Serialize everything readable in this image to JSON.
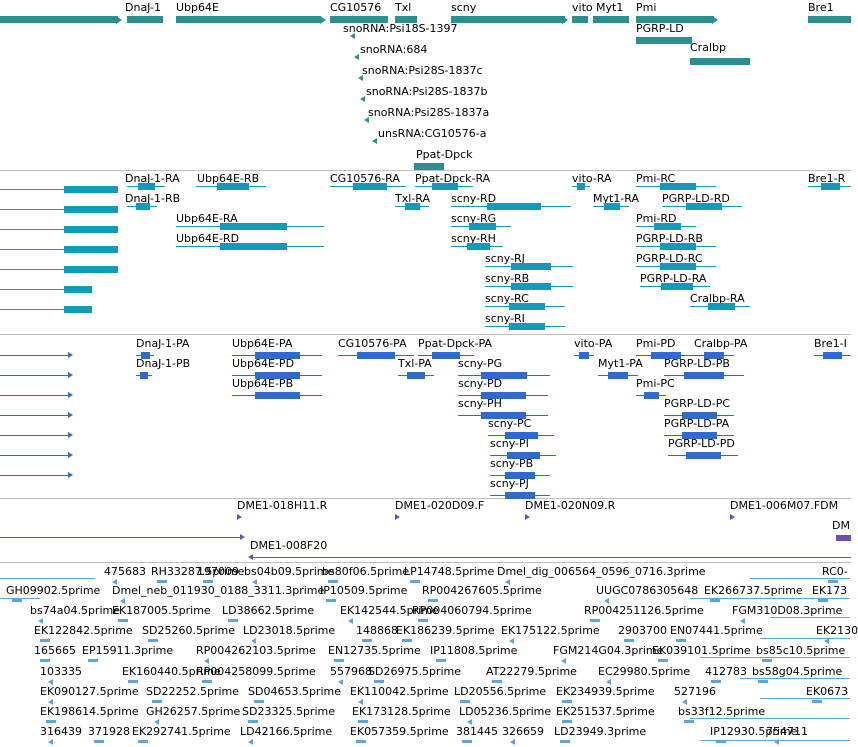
{
  "colors": {
    "gene": "#2a8f91",
    "mrna": "#119bb8",
    "cds": "#2f6bcc",
    "clone": "#6b4fb4",
    "est": "#5aa6dd",
    "separator": "#bfbfbf"
  },
  "tracks": {
    "genes": {
      "features": [
        {
          "label": "DnaJ-1"
        },
        {
          "label": "Ubp64E"
        },
        {
          "label": "CG10576"
        },
        {
          "label": "Txl"
        },
        {
          "label": "scny"
        },
        {
          "label": "vito"
        },
        {
          "label": "Myt1"
        },
        {
          "label": "Pmi"
        },
        {
          "label": "Bre1"
        },
        {
          "label": "PGRP-LD"
        },
        {
          "label": "Cralbp"
        },
        {
          "label": "snoRNA:Psi18S-1397"
        },
        {
          "label": "snoRNA:684"
        },
        {
          "label": "snoRNA:Psi28S-1837c"
        },
        {
          "label": "snoRNA:Psi28S-1837b"
        },
        {
          "label": "snoRNA:Psi28S-1837a"
        },
        {
          "label": "unsRNA:CG10576-a"
        },
        {
          "label": "Ppat-Dpck"
        }
      ]
    },
    "transcripts": {
      "features": [
        {
          "label": "DnaJ-1-RA"
        },
        {
          "label": "DnaJ-1-RB"
        },
        {
          "label": "Ubp64E-RB"
        },
        {
          "label": "Ubp64E-RA"
        },
        {
          "label": "Ubp64E-RD"
        },
        {
          "label": "CG10576-RA"
        },
        {
          "label": "Ppat-Dpck-RA"
        },
        {
          "label": "Txl-RA"
        },
        {
          "label": "scny-RD"
        },
        {
          "label": "scny-RG"
        },
        {
          "label": "scny-RH"
        },
        {
          "label": "scny-RJ"
        },
        {
          "label": "scny-RB"
        },
        {
          "label": "scny-RC"
        },
        {
          "label": "scny-RI"
        },
        {
          "label": "vito-RA"
        },
        {
          "label": "Myt1-RA"
        },
        {
          "label": "Pmi-RC"
        },
        {
          "label": "PGRP-LD-RD"
        },
        {
          "label": "Pmi-RD"
        },
        {
          "label": "PGRP-LD-RB"
        },
        {
          "label": "PGRP-LD-RC"
        },
        {
          "label": "PGRP-LD-RA"
        },
        {
          "label": "Cralbp-RA"
        },
        {
          "label": "Bre1-R"
        }
      ]
    },
    "cds": {
      "features": [
        {
          "label": "DnaJ-1-PA"
        },
        {
          "label": "DnaJ-1-PB"
        },
        {
          "label": "Ubp64E-PA"
        },
        {
          "label": "Ubp64E-PD"
        },
        {
          "label": "Ubp64E-PB"
        },
        {
          "label": "CG10576-PA"
        },
        {
          "label": "Ppat-Dpck-PA"
        },
        {
          "label": "Txl-PA"
        },
        {
          "label": "scny-PG"
        },
        {
          "label": "scny-PD"
        },
        {
          "label": "scny-PH"
        },
        {
          "label": "scny-PC"
        },
        {
          "label": "scny-PI"
        },
        {
          "label": "scny-PB"
        },
        {
          "label": "scny-PJ"
        },
        {
          "label": "vito-PA"
        },
        {
          "label": "Myt1-PA"
        },
        {
          "label": "Pmi-PD"
        },
        {
          "label": "Cralbp-PA"
        },
        {
          "label": "Pmi-PC"
        },
        {
          "label": "PGRP-LD-PB"
        },
        {
          "label": "PGRP-LD-PC"
        },
        {
          "label": "PGRP-LD-PA"
        },
        {
          "label": "PGRP-LD-PD"
        },
        {
          "label": "Bre1-I"
        }
      ]
    },
    "clones": {
      "features": [
        {
          "label": "DME1-018H11.R"
        },
        {
          "label": "DME1-020D09.F"
        },
        {
          "label": "DME1-020N09.R"
        },
        {
          "label": "DME1-006M07.FDM"
        },
        {
          "label": "DM"
        },
        {
          "label": "DME1-008F20"
        }
      ]
    },
    "ests": {
      "features": [
        {
          "label": "475683"
        },
        {
          "label": "RH33287.5prime"
        },
        {
          "label": "197009"
        },
        {
          "label": "bs04b09.5prime"
        },
        {
          "label": "bs80f06.5prime"
        },
        {
          "label": "LP14748.5prime"
        },
        {
          "label": "Dmel_dig_006564_0596_0716.3prime"
        },
        {
          "label": "RC0-"
        },
        {
          "label": "GH09902.5prime"
        },
        {
          "label": "Dmel_neb_011930_0188_3311.3prime"
        },
        {
          "label": "IP10509.5prime"
        },
        {
          "label": "RP004267605.5prime"
        },
        {
          "label": "UUGC0786305648"
        },
        {
          "label": "EK266737.5prime"
        },
        {
          "label": "EK173"
        },
        {
          "label": "bs74a04.5prime"
        },
        {
          "label": "EK187005.5prime"
        },
        {
          "label": "LD38662.5prime"
        },
        {
          "label": "EK142544.5prime"
        },
        {
          "label": "RP004060794.5prime"
        },
        {
          "label": "RP004251126.5prime"
        },
        {
          "label": "FGM310D08.3prime"
        },
        {
          "label": "EK122842.5prime"
        },
        {
          "label": "SD25260.5prime"
        },
        {
          "label": "LD23018.5prime"
        },
        {
          "label": "148868"
        },
        {
          "label": "EK186239.5prime"
        },
        {
          "label": "EK175122.5prime"
        },
        {
          "label": "2903700"
        },
        {
          "label": "EN07441.5prime"
        },
        {
          "label": "EK2130"
        },
        {
          "label": "165665"
        },
        {
          "label": "EP15911.3prime"
        },
        {
          "label": "RP004262103.5prime"
        },
        {
          "label": "EN12735.5prime"
        },
        {
          "label": "IP11808.5prime"
        },
        {
          "label": "FGM214G04.3prime"
        },
        {
          "label": "EK039101.5prime"
        },
        {
          "label": "bs85c10.5prime"
        },
        {
          "label": "103335"
        },
        {
          "label": "EK160440.5prime"
        },
        {
          "label": "RP004258099.5prime"
        },
        {
          "label": "557968"
        },
        {
          "label": "SD26975.5prime"
        },
        {
          "label": "AT22279.5prime"
        },
        {
          "label": "EC29980.5prime"
        },
        {
          "label": "412783"
        },
        {
          "label": "bs58g04.5prime"
        },
        {
          "label": "EK090127.5prime"
        },
        {
          "label": "SD22252.5prime"
        },
        {
          "label": "SD04653.5prime"
        },
        {
          "label": "EK110042.5prime"
        },
        {
          "label": "LD20556.5prime"
        },
        {
          "label": "EK234939.5prime"
        },
        {
          "label": "527196"
        },
        {
          "label": "EK0673"
        },
        {
          "label": "EK198614.5prime"
        },
        {
          "label": "GH26257.5prime"
        },
        {
          "label": "SD23325.5prime"
        },
        {
          "label": "EK173128.5prime"
        },
        {
          "label": "LD05236.5prime"
        },
        {
          "label": "EK251537.5prime"
        },
        {
          "label": "bs33f12.5prime"
        },
        {
          "label": "316439"
        },
        {
          "label": "371928"
        },
        {
          "label": "EK292741.5prime"
        },
        {
          "label": "LD42166.5prime"
        },
        {
          "label": "EK057359.5prime"
        },
        {
          "label": "381445"
        },
        {
          "label": "326659"
        },
        {
          "label": "LD23949.3prime"
        },
        {
          "label": "IP12930.5prime"
        },
        {
          "label": "754711"
        }
      ]
    }
  }
}
